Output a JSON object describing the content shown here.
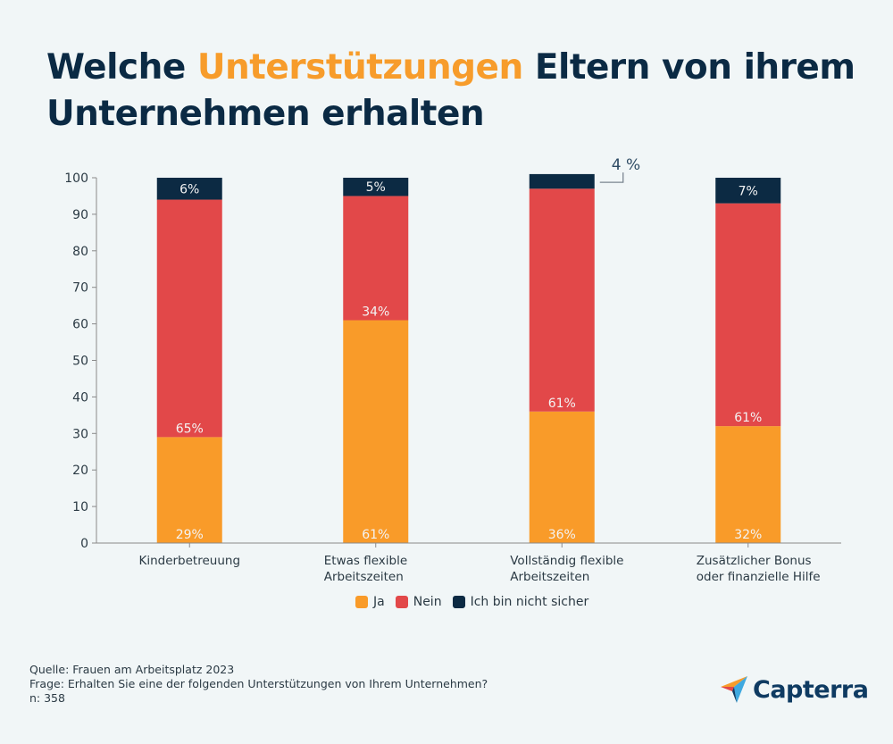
{
  "title": {
    "part1": "Welche ",
    "highlight": "Unterstützungen",
    "part2": " Eltern von ihrem Unternehmen erhalten",
    "highlight_color": "#f79c2b"
  },
  "chart_data": {
    "type": "bar",
    "stacked": true,
    "title": "Welche Unterstützungen Eltern von ihrem Unternehmen erhalten",
    "xlabel": "",
    "ylabel": "",
    "ylim": [
      0,
      100
    ],
    "yticks": [
      0,
      10,
      20,
      30,
      40,
      50,
      60,
      70,
      80,
      90,
      100
    ],
    "grid": false,
    "categories": [
      [
        "Kinderbetreuung"
      ],
      [
        "Etwas flexible",
        "Arbeitszeiten"
      ],
      [
        "Vollständig flexible",
        "Arbeitszeiten"
      ],
      [
        "Zusätzlicher Bonus",
        "oder finanzielle Hilfe"
      ]
    ],
    "series": [
      {
        "name": "Ja",
        "color": "#f99b29",
        "values": [
          29,
          61,
          36,
          32
        ]
      },
      {
        "name": "Nein",
        "color": "#e24849",
        "values": [
          65,
          34,
          61,
          61
        ]
      },
      {
        "name": "Ich bin nicht sicher",
        "color": "#0c2a43",
        "values": [
          6,
          5,
          4,
          7
        ]
      }
    ],
    "data_labels": [
      [
        "29%",
        "61%",
        "36%",
        "32%"
      ],
      [
        "65%",
        "34%",
        "61%",
        "61%"
      ],
      [
        "6%",
        "5%",
        "",
        "7%"
      ]
    ],
    "annotations": [
      {
        "category_index": 2,
        "series": "Ich bin nicht sicher",
        "text": "4 %"
      }
    ],
    "legend_position": "bottom"
  },
  "footer": {
    "source": "Quelle: Frauen am Arbeitsplatz 2023",
    "question": "Frage: Erhalten Sie eine der folgenden Unterstützungen von Ihrem Unternehmen?",
    "n": "n: 358"
  },
  "logo": {
    "text": "Capterra",
    "icon": "capterra-arrow-logo"
  }
}
